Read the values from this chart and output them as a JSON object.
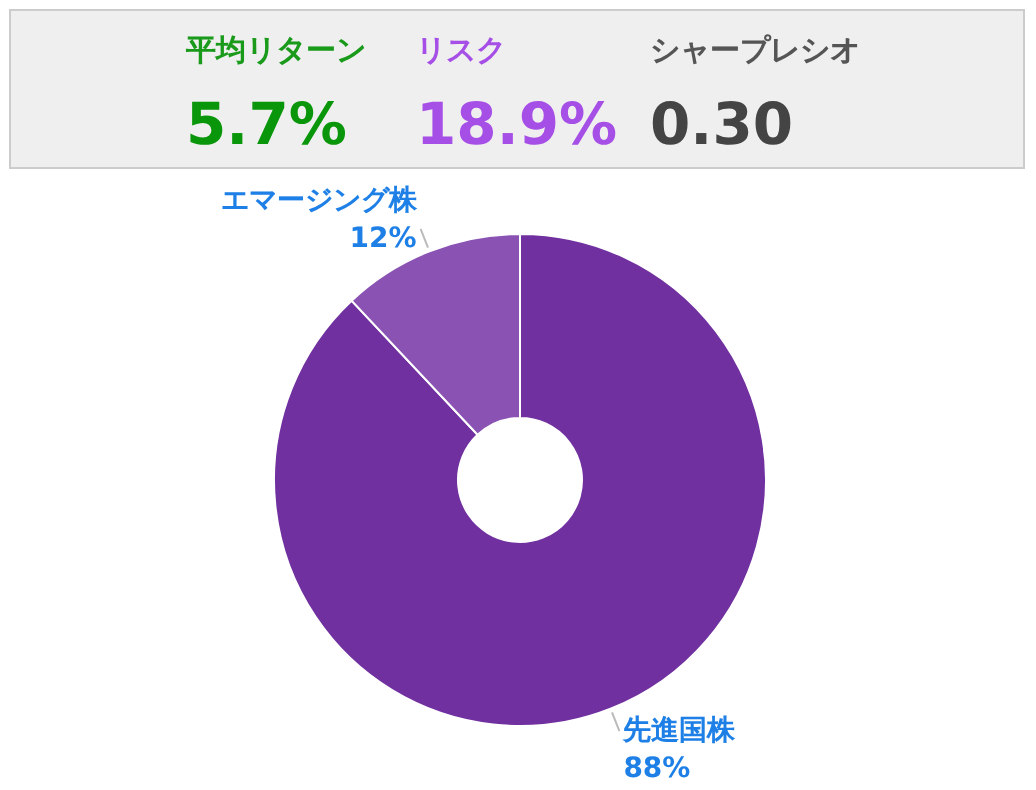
{
  "chart_data": [
    {
      "type": "other",
      "annotations": [
        "平均リターン",
        "5.7%",
        "リスク",
        "18.9%",
        "シャープレシオ",
        "0.30"
      ]
    },
    {
      "type": "donut",
      "categories": [
        "先進国株",
        "エマージング株"
      ],
      "values": [
        88,
        12
      ],
      "colors": [
        "#7030a0",
        "#8a52b3"
      ],
      "value_labels": [
        "88%",
        "12%"
      ]
    }
  ]
}
